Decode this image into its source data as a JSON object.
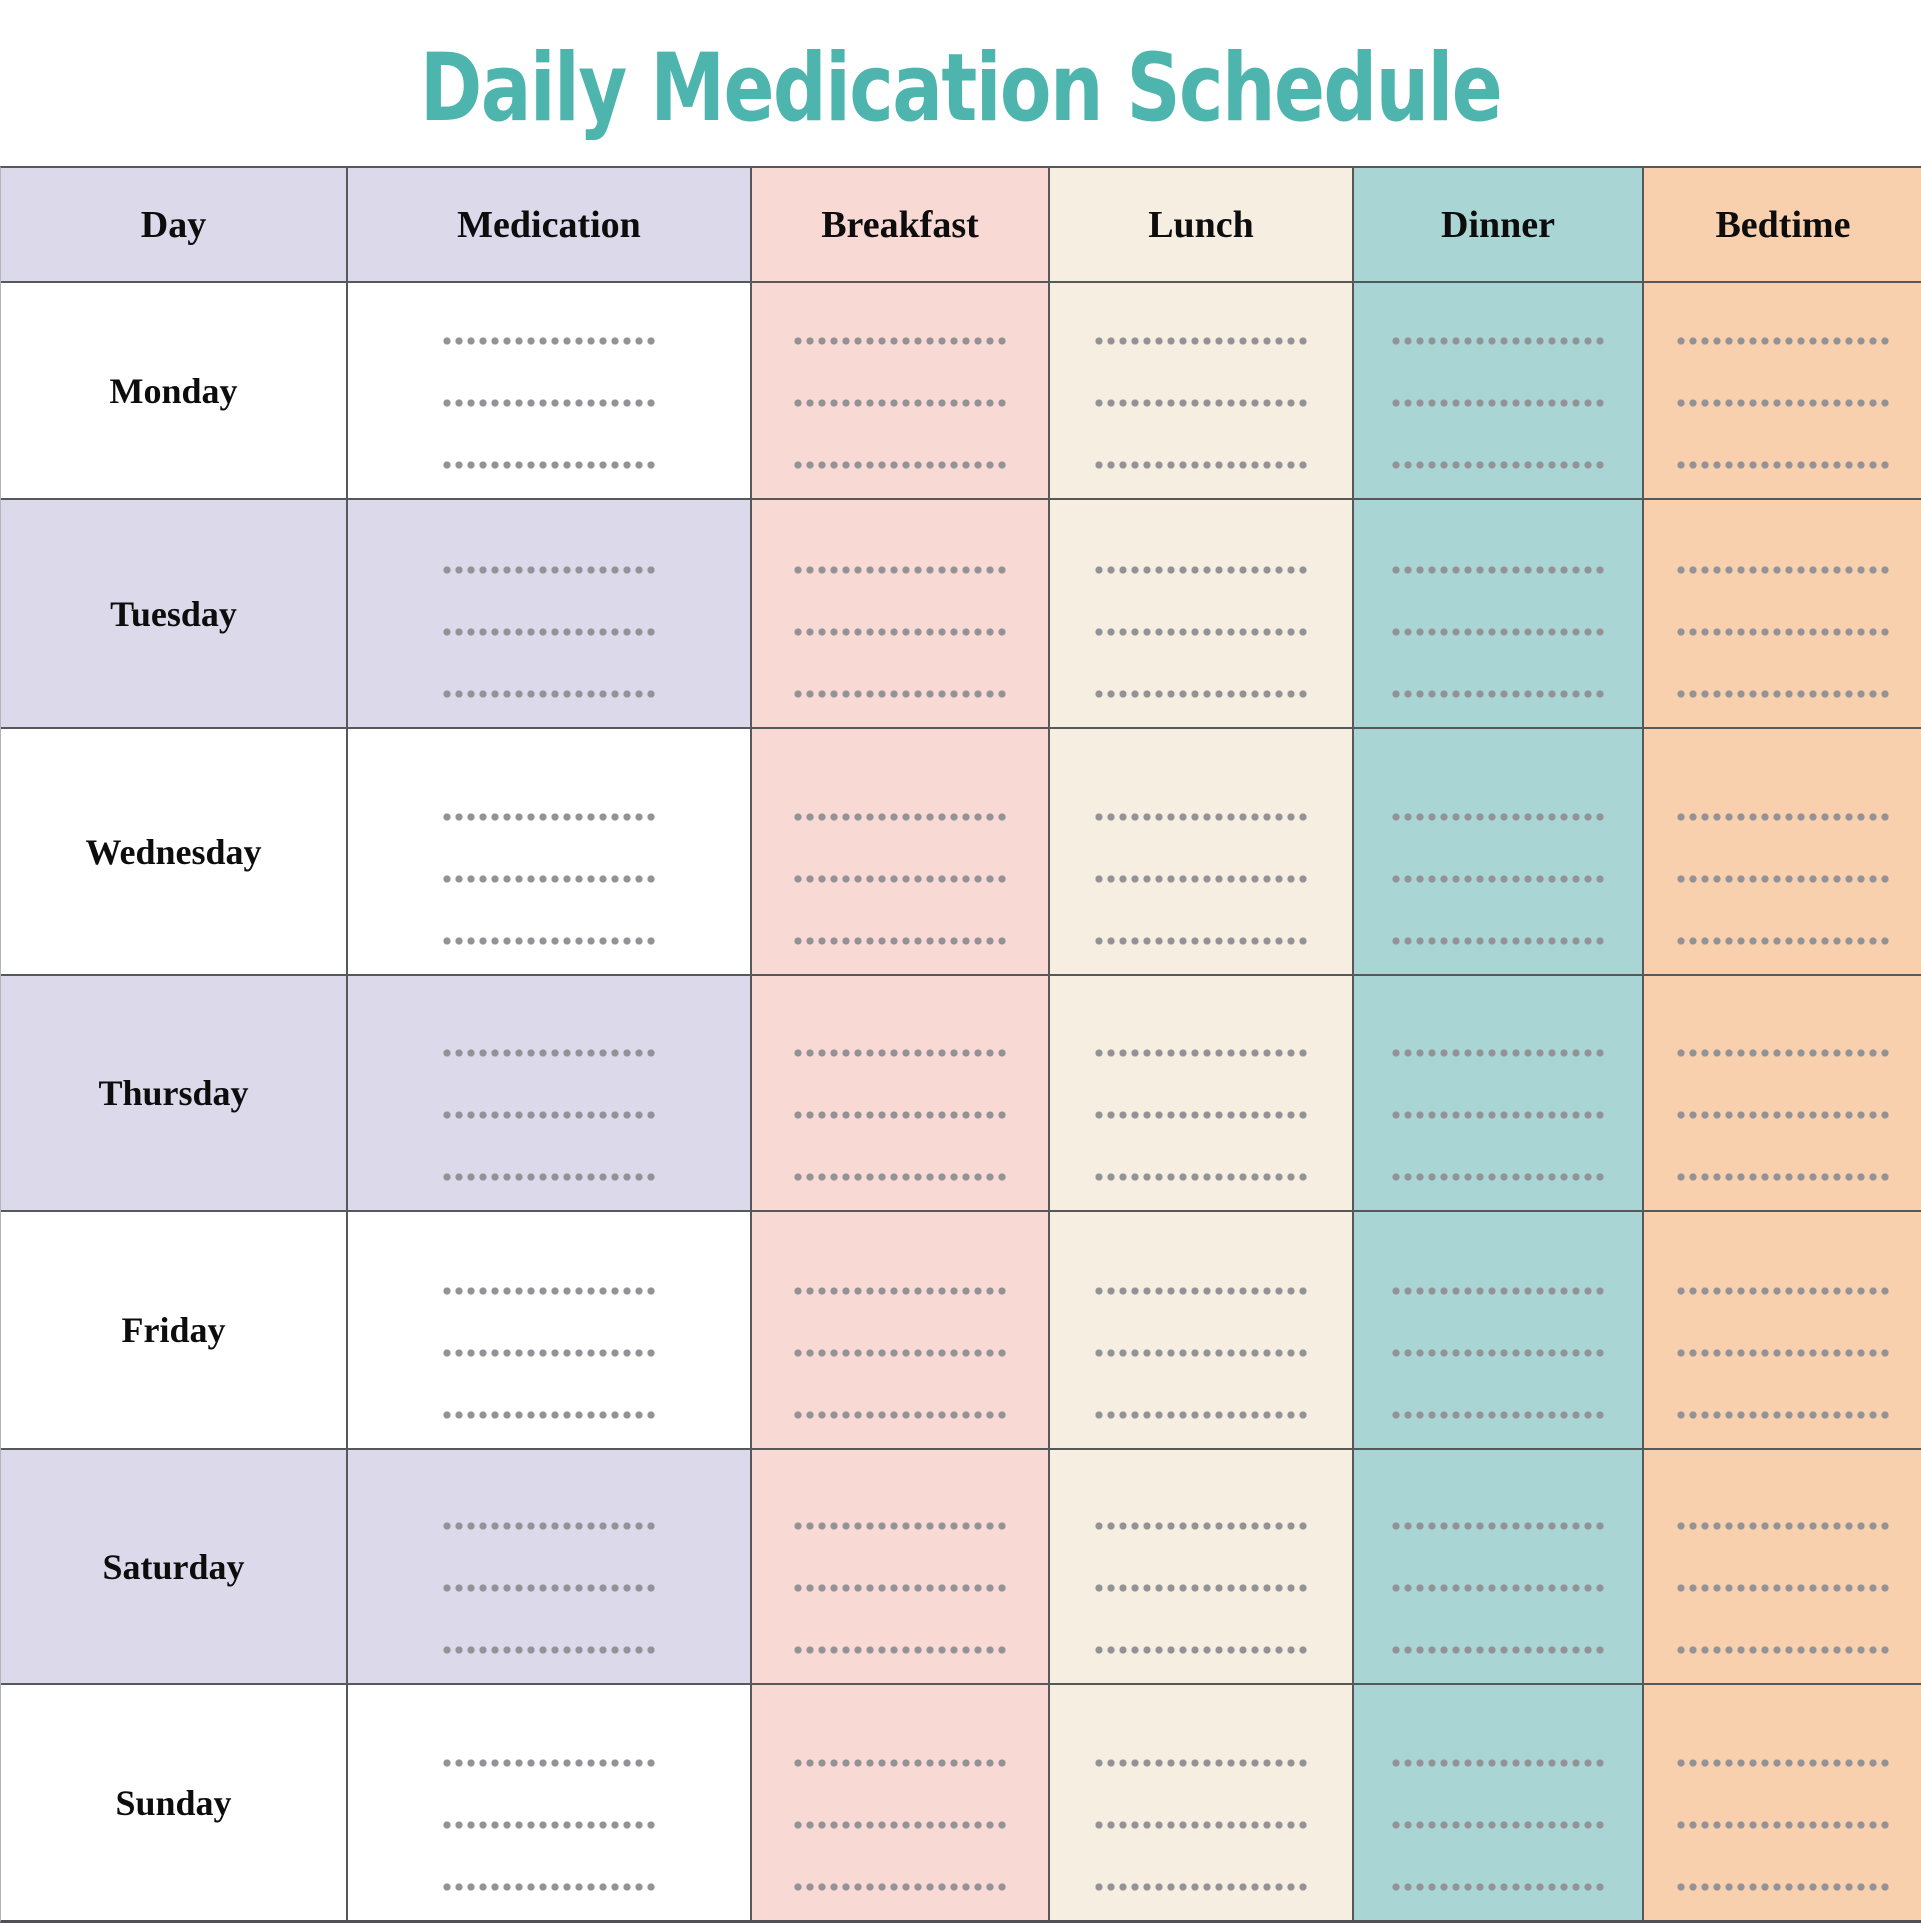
{
  "title": "Daily Medication Schedule",
  "table": {
    "columns": [
      {
        "id": "day",
        "label": "Day"
      },
      {
        "id": "medication",
        "label": "Medication"
      },
      {
        "id": "breakfast",
        "label": "Breakfast"
      },
      {
        "id": "lunch",
        "label": "Lunch"
      },
      {
        "id": "dinner",
        "label": "Dinner"
      },
      {
        "id": "bedtime",
        "label": "Bedtime"
      }
    ],
    "days": [
      "Monday",
      "Tuesday",
      "Wednesday",
      "Thursday",
      "Friday",
      "Saturday",
      "Sunday"
    ],
    "writein_lines_per_cell": 3,
    "cell_content": "dotted-blank-line"
  },
  "colors": {
    "title_text": "#4db5ad",
    "header_day_med": "#dcd9ea",
    "row_alt": "#dcd9ea",
    "row_base": "#ffffff",
    "breakfast_col": "#f8d9d4",
    "lunch_col": "#f6efe1",
    "dinner_col": "#a9d6d4",
    "bedtime_col": "#f8d0ae",
    "grid_line": "#57585c",
    "dots": "#939296"
  }
}
